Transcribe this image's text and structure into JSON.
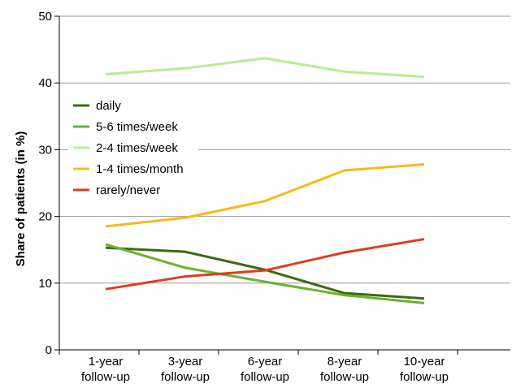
{
  "chart_data": {
    "type": "line",
    "title": "",
    "xlabel": "",
    "ylabel": "Share of patients (in %)",
    "ylim": [
      0,
      50
    ],
    "yticks": [
      0,
      10,
      20,
      30,
      40,
      50
    ],
    "grid": true,
    "legend_position": "left",
    "categories": [
      [
        "1-year",
        "follow-up"
      ],
      [
        "3-year",
        "follow-up"
      ],
      [
        "6-year",
        "follow-up"
      ],
      [
        "8-year",
        "follow-up"
      ],
      [
        "10-year",
        "follow-up"
      ]
    ],
    "series": [
      {
        "name": "daily",
        "color": "#3a6b0f",
        "values": [
          15.3,
          14.7,
          12.0,
          8.5,
          7.7
        ]
      },
      {
        "name": "5-6 times/week",
        "color": "#6db22f",
        "values": [
          15.8,
          12.3,
          10.2,
          8.2,
          7.0
        ]
      },
      {
        "name": "2-4 times/week",
        "color": "#b9ec92",
        "values": [
          41.3,
          42.2,
          43.7,
          41.7,
          40.9
        ]
      },
      {
        "name": "1-4 times/month",
        "color": "#f7b91b",
        "values": [
          18.5,
          19.8,
          22.3,
          26.9,
          27.8
        ]
      },
      {
        "name": "rarely/never",
        "color": "#e23b1c",
        "values": [
          9.1,
          11.0,
          11.9,
          14.6,
          16.6
        ]
      }
    ]
  }
}
